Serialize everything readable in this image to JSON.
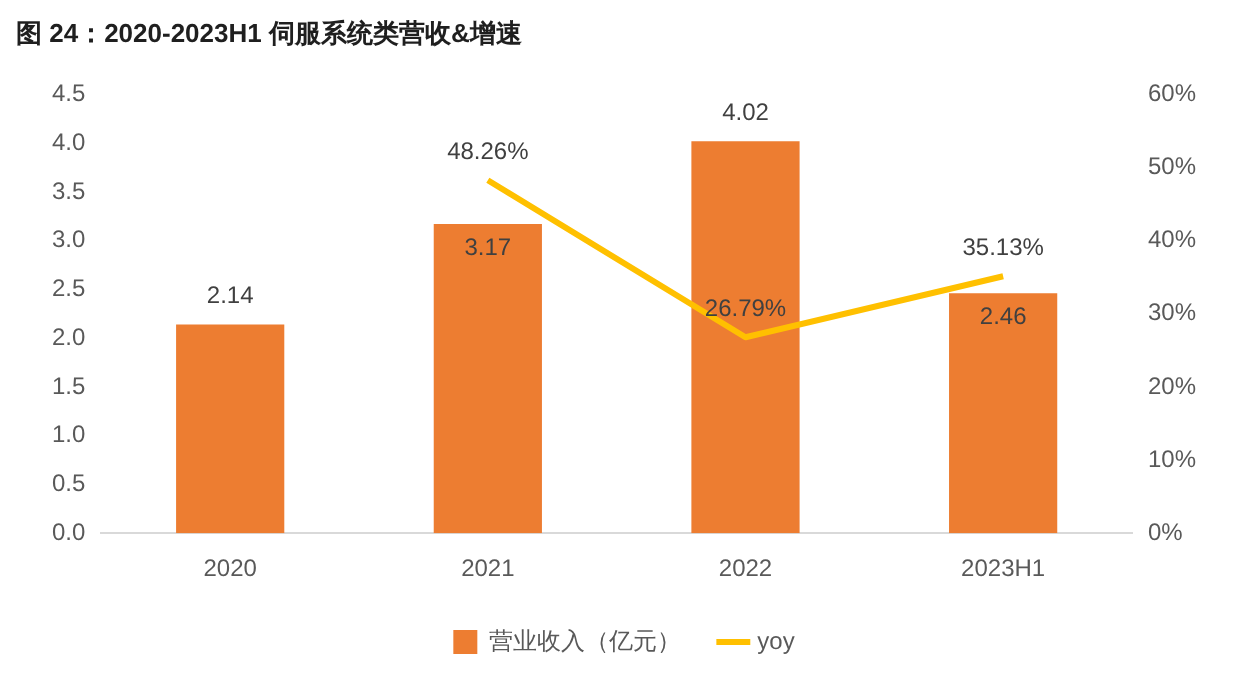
{
  "chart_data": {
    "type": "bar",
    "title": "图 24：2020-2023H1 伺服系统类营收&增速",
    "categories": [
      "2020",
      "2021",
      "2022",
      "2023H1"
    ],
    "series": [
      {
        "name": "营业收入（亿元）",
        "color": "#ed7d31",
        "values": [
          2.14,
          3.17,
          4.02,
          2.46
        ],
        "value_labels": [
          "2.14",
          "3.17",
          "4.02",
          "2.46"
        ]
      },
      {
        "name": "yoy",
        "type": "line",
        "axis": "y2",
        "color": "#ffc000",
        "values": [
          null,
          48.26,
          26.79,
          35.13
        ],
        "value_labels": [
          null,
          "48.26%",
          "26.79%",
          "35.13%"
        ]
      }
    ],
    "ylim": [
      0,
      4.5
    ],
    "yticks": [
      {
        "value": 0,
        "label": "0.0"
      },
      {
        "value": 0.5,
        "label": "0.5"
      },
      {
        "value": 1,
        "label": "1.0"
      },
      {
        "value": 1.5,
        "label": "1.5"
      },
      {
        "value": 2,
        "label": "2.0"
      },
      {
        "value": 2.5,
        "label": "2.5"
      },
      {
        "value": 3,
        "label": "3.0"
      },
      {
        "value": 3.5,
        "label": "3.5"
      },
      {
        "value": 4,
        "label": "4.0"
      },
      {
        "value": 4.5,
        "label": "4.5"
      }
    ],
    "y2lim": [
      0,
      60
    ],
    "y2ticks": [
      {
        "value": 0,
        "label": "0%"
      },
      {
        "value": 10,
        "label": "10%"
      },
      {
        "value": 20,
        "label": "20%"
      },
      {
        "value": 30,
        "label": "30%"
      },
      {
        "value": 40,
        "label": "40%"
      },
      {
        "value": 50,
        "label": "50%"
      },
      {
        "value": 60,
        "label": "60%"
      }
    ],
    "grid": false,
    "legend": "bottom",
    "marker": "none",
    "line_style": "solid"
  }
}
